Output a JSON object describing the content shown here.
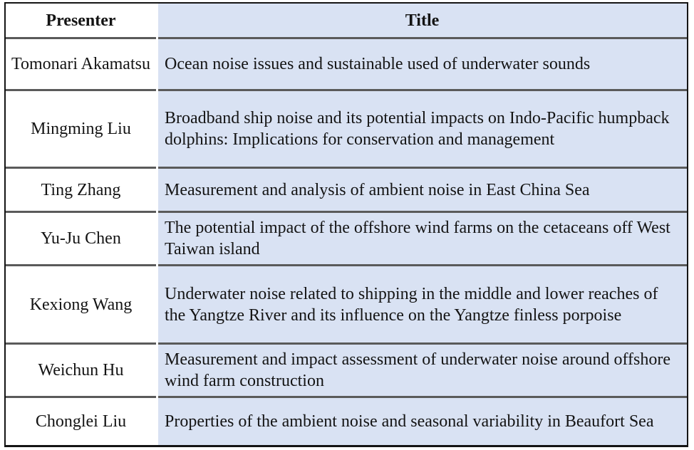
{
  "theme": {
    "title-bg": "#d9e2f3",
    "sep": "#5a5a5a",
    "outer": "#141414",
    "text": "#141414"
  },
  "table": {
    "headers": {
      "presenter": "Presenter",
      "title": "Title"
    },
    "rows": [
      {
        "presenter": "Tomonari Akamatsu",
        "title": "Ocean noise issues and sustainable used of underwater sounds"
      },
      {
        "presenter": "Mingming Liu",
        "title": "Broadband ship noise and its potential impacts on Indo-Pacific humpback dolphins: Implications for conservation and management"
      },
      {
        "presenter": "Ting Zhang",
        "title": "Measurement and analysis of ambient noise in East China Sea"
      },
      {
        "presenter": "Yu-Ju Chen",
        "title": "The potential impact of the offshore wind farms on the cetaceans off West Taiwan island"
      },
      {
        "presenter": "Kexiong Wang",
        "title": "Underwater noise related to shipping in the middle and lower reaches of the Yangtze River and its influence on the Yangtze finless porpoise"
      },
      {
        "presenter": "Weichun Hu",
        "title": "Measurement and impact assessment of underwater noise around offshore wind farm construction"
      },
      {
        "presenter": "Chonglei Liu",
        "title": "Properties of the ambient noise and seasonal variability in Beaufort Sea"
      }
    ]
  }
}
